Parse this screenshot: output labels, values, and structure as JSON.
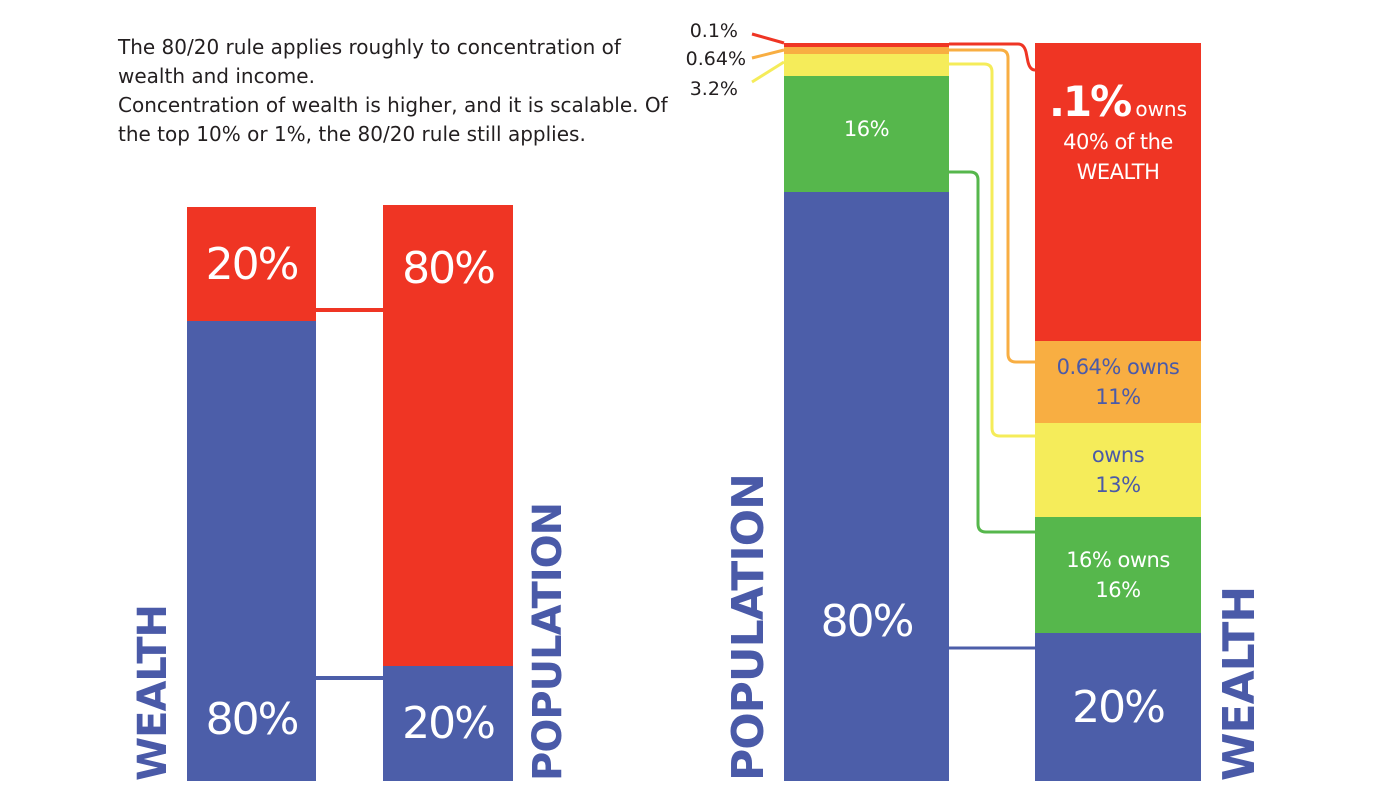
{
  "intro": {
    "line1": "The 80/20 rule applies roughly to concentration of wealth and income.",
    "line2": "Concentration of wealth is higher, and it is scalable. Of the top 10% or 1%, the 80/20 rule still applies."
  },
  "colors": {
    "red": "#ef3524",
    "blue": "#4c5ea9",
    "orange": "#f8ae42",
    "yellow": "#f5ec5a",
    "green": "#56b74c"
  },
  "chart_data": [
    {
      "type": "bar",
      "stacked": true,
      "categories": [
        "WEALTH",
        "POPULATION"
      ],
      "series": [
        {
          "values": [
            20,
            80
          ],
          "labels": [
            "20%",
            "80%"
          ],
          "color": "#ef3524"
        },
        {
          "values": [
            80,
            20
          ],
          "labels": [
            "80%",
            "20%"
          ],
          "color": "#4c5ea9"
        }
      ],
      "axis_labels": {
        "left": "WEALTH",
        "right": "POPULATION"
      }
    },
    {
      "type": "bar",
      "stacked": true,
      "categories": [
        "POPULATION",
        "WEALTH"
      ],
      "population_segments": [
        {
          "value": 0.1,
          "label": "0.1%",
          "color": "#ef3524"
        },
        {
          "value": 0.64,
          "label": "0.64%",
          "color": "#f8ae42"
        },
        {
          "value": 3.2,
          "label": "3.2%",
          "color": "#f5ec5a"
        },
        {
          "value": 16,
          "label": "16%",
          "color": "#56b74c"
        },
        {
          "value": 80,
          "label": "80%",
          "color": "#4c5ea9"
        }
      ],
      "wealth_segments": [
        {
          "value": 40,
          "bold_label": ".1%",
          "label_lines": [
            "owns",
            "40% of the",
            "WEALTH"
          ],
          "color": "#ef3524"
        },
        {
          "value": 11,
          "label_lines": [
            "0.64% owns",
            "11%"
          ],
          "color": "#f8ae42"
        },
        {
          "value": 13,
          "label_lines": [
            "owns",
            "13%"
          ],
          "color": "#f5ec5a"
        },
        {
          "value": 16,
          "label_lines": [
            "16% owns",
            "16%"
          ],
          "color": "#56b74c"
        },
        {
          "value": 20,
          "label_lines": [
            "20%"
          ],
          "color": "#4c5ea9"
        }
      ],
      "axis_labels": {
        "left": "POPULATION",
        "right": "WEALTH"
      }
    }
  ]
}
